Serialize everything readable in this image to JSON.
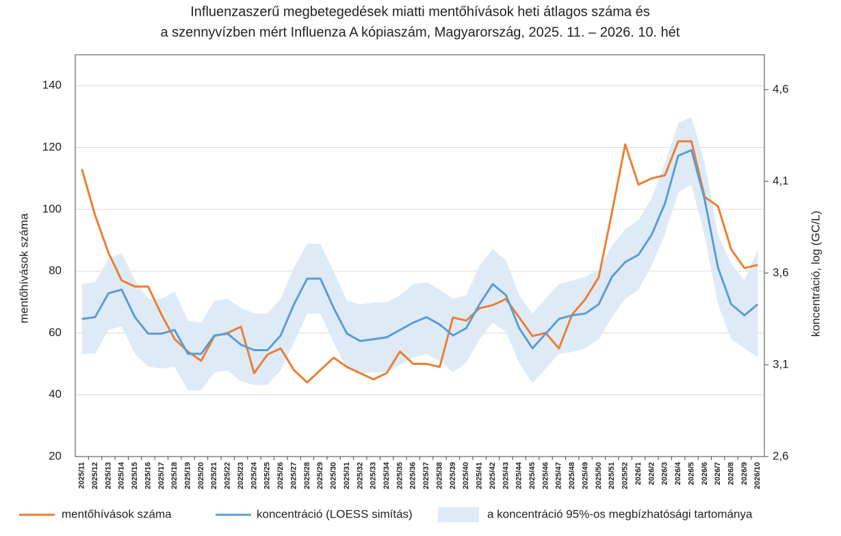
{
  "chart_data": {
    "type": "line",
    "title": [
      "Influenzaszerű megbetegedések miatti mentőhívások heti átlagos száma és",
      "a szennyvízben mért Influenza A kópiaszám, Magyarország, 2025. 11. – 2026. 10. hét"
    ],
    "y_label": "mentőhívások száma",
    "y2_label": "koncentráció, log (GC/L)",
    "categories": [
      "2025/11",
      "2025/12",
      "2025/13",
      "2025/14",
      "2025/15",
      "2025/16",
      "2025/17",
      "2025/18",
      "2025/19",
      "2025/20",
      "2025/21",
      "2025/22",
      "2025/23",
      "2025/24",
      "2025/25",
      "2025/26",
      "2025/27",
      "2025/28",
      "2025/29",
      "2025/30",
      "2025/31",
      "2025/32",
      "2025/33",
      "2025/34",
      "2025/35",
      "2025/36",
      "2025/37",
      "2025/38",
      "2025/39",
      "2025/40",
      "2025/41",
      "2025/42",
      "2025/43",
      "2025/44",
      "2025/45",
      "2025/46",
      "2025/47",
      "2025/48",
      "2025/49",
      "2025/50",
      "2025/51",
      "2025/52",
      "2026/1",
      "2026/2",
      "2026/3",
      "2026/4",
      "2026/5",
      "2026/6",
      "2026/7",
      "2026/8",
      "2026/9",
      "2026/10"
    ],
    "ylim": [
      20,
      150
    ],
    "yticks": [
      20,
      40,
      60,
      80,
      100,
      120,
      140
    ],
    "y2lim": [
      2.6,
      4.79
    ],
    "y2ticks": [
      {
        "value": 2.6,
        "label": "2,6"
      },
      {
        "value": 3.1,
        "label": "3,1"
      },
      {
        "value": 3.6,
        "label": "3,6"
      },
      {
        "value": 4.1,
        "label": "4,1"
      },
      {
        "value": 4.6,
        "label": "4,6"
      }
    ],
    "grid": true,
    "legend": "bottom",
    "series": [
      {
        "name": "mentőhívások száma",
        "color": "#ed7d31",
        "values": [
          113,
          98,
          86,
          77,
          75,
          75,
          66,
          58,
          54,
          51,
          59,
          60,
          62,
          47,
          53,
          55,
          48,
          44,
          48,
          52,
          49,
          47,
          45,
          47,
          54,
          50,
          50,
          49,
          65,
          64,
          68,
          69,
          71,
          65,
          59,
          60,
          55,
          66,
          71,
          78,
          99,
          121,
          108,
          110,
          111,
          122,
          122,
          104,
          101,
          87,
          81,
          82
        ]
      },
      {
        "name": "koncentráció (LOESS simítás)",
        "color": "#5b9bd5",
        "axis": "y2",
        "values": [
          3.35,
          3.36,
          3.49,
          3.51,
          3.36,
          3.27,
          3.27,
          3.29,
          3.16,
          3.16,
          3.26,
          3.27,
          3.21,
          3.18,
          3.18,
          3.26,
          3.43,
          3.57,
          3.57,
          3.41,
          3.27,
          3.23,
          3.24,
          3.25,
          3.29,
          3.33,
          3.36,
          3.32,
          3.26,
          3.3,
          3.43,
          3.54,
          3.48,
          3.3,
          3.19,
          3.27,
          3.35,
          3.37,
          3.38,
          3.43,
          3.58,
          3.66,
          3.7,
          3.81,
          3.98,
          4.24,
          4.27,
          4.0,
          3.63,
          3.43,
          3.37,
          3.43
        ]
      },
      {
        "name": "a koncentráció 95%-os megbízhatósági tartománya",
        "color": "#deebf7",
        "axis": "y2",
        "upper": [
          3.54,
          3.55,
          3.68,
          3.71,
          3.56,
          3.46,
          3.46,
          3.5,
          3.34,
          3.33,
          3.45,
          3.46,
          3.41,
          3.38,
          3.38,
          3.46,
          3.63,
          3.76,
          3.76,
          3.61,
          3.45,
          3.43,
          3.44,
          3.44,
          3.48,
          3.54,
          3.55,
          3.51,
          3.46,
          3.48,
          3.64,
          3.73,
          3.67,
          3.48,
          3.38,
          3.46,
          3.54,
          3.56,
          3.58,
          3.62,
          3.75,
          3.84,
          3.89,
          4.01,
          4.2,
          4.42,
          4.45,
          4.2,
          3.81,
          3.65,
          3.56,
          3.73
        ],
        "lower": [
          3.16,
          3.16,
          3.29,
          3.31,
          3.16,
          3.09,
          3.08,
          3.09,
          2.96,
          2.96,
          3.06,
          3.07,
          3.01,
          2.99,
          2.99,
          3.07,
          3.22,
          3.38,
          3.38,
          3.22,
          3.08,
          3.05,
          3.06,
          3.06,
          3.1,
          3.14,
          3.16,
          3.12,
          3.06,
          3.11,
          3.24,
          3.33,
          3.28,
          3.11,
          3.0,
          3.08,
          3.16,
          3.17,
          3.19,
          3.24,
          3.36,
          3.46,
          3.51,
          3.64,
          3.81,
          4.04,
          4.08,
          3.8,
          3.43,
          3.24,
          3.19,
          3.14
        ]
      }
    ]
  }
}
